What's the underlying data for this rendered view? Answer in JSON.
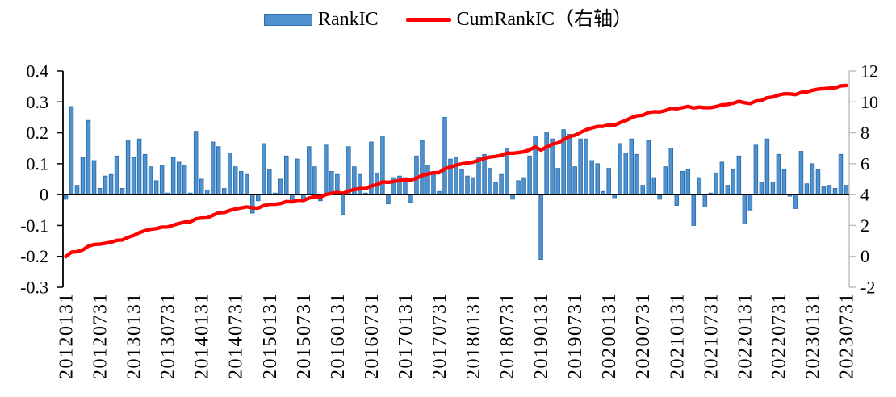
{
  "chart_data": {
    "type": "bar+line",
    "title": "",
    "legend_position": "top-center",
    "grid": false,
    "colors": {
      "bar_fill": "#4E93CF",
      "bar_stroke": "#2B6CAC",
      "line": "#FF0000",
      "left_axis": "#000000",
      "right_axis": "#BFBFBF",
      "zero_line": "#000000"
    },
    "left_axis": {
      "title": "",
      "max": 0.4,
      "min": -0.3,
      "ticks": [
        "0.4",
        "0.3",
        "0.2",
        "0.1",
        "0",
        "-0.1",
        "-0.2",
        "-0.3"
      ]
    },
    "right_axis": {
      "title": "",
      "max": 12,
      "min": -2,
      "ticks": [
        "12",
        "10",
        "8",
        "6",
        "4",
        "2",
        "0",
        "-2"
      ]
    },
    "x_axis": {
      "frequency": "monthly",
      "first_month": "20120131",
      "last_month": "20230731",
      "tick_every": 6,
      "tick_labels": [
        "20120131",
        "20120731",
        "20130131",
        "20130731",
        "20140131",
        "20140731",
        "20150131",
        "20150731",
        "20160131",
        "20160731",
        "20170131",
        "20170731",
        "20180131",
        "20180731",
        "20190131",
        "20190731",
        "20200131",
        "20200731",
        "20210131",
        "20210731",
        "20220131",
        "20220731",
        "20230131",
        "20230731"
      ]
    },
    "series": [
      {
        "name": "RankIC",
        "type": "bar",
        "axis": "left",
        "color": "#4E93CF",
        "values": [
          -0.015,
          0.285,
          0.03,
          0.12,
          0.24,
          0.11,
          0.02,
          0.06,
          0.065,
          0.125,
          0.02,
          0.175,
          0.12,
          0.18,
          0.13,
          0.09,
          0.045,
          0.095,
          0.005,
          0.12,
          0.105,
          0.095,
          0.005,
          0.205,
          0.05,
          0.015,
          0.17,
          0.155,
          0.02,
          0.135,
          0.09,
          0.075,
          0.065,
          -0.06,
          -0.02,
          0.165,
          0.08,
          0.005,
          0.05,
          0.125,
          -0.025,
          0.115,
          -0.02,
          0.155,
          0.09,
          -0.02,
          0.16,
          0.075,
          0.065,
          -0.065,
          0.155,
          0.09,
          0.065,
          0.005,
          0.17,
          0.07,
          0.19,
          -0.03,
          0.055,
          0.06,
          0.055,
          -0.025,
          0.125,
          0.175,
          0.095,
          0.075,
          0.01,
          0.25,
          0.115,
          0.12,
          0.08,
          0.06,
          0.055,
          0.12,
          0.13,
          0.085,
          0.04,
          0.065,
          0.15,
          -0.015,
          0.045,
          0.055,
          0.125,
          0.19,
          -0.21,
          0.2,
          0.18,
          0.085,
          0.21,
          0.195,
          0.09,
          0.18,
          0.18,
          0.11,
          0.1,
          0.01,
          0.085,
          -0.01,
          0.165,
          0.135,
          0.18,
          0.13,
          0.03,
          0.175,
          0.055,
          -0.015,
          0.09,
          0.15,
          -0.035,
          0.075,
          0.08,
          -0.1,
          0.055,
          -0.04,
          0.005,
          0.07,
          0.105,
          0.03,
          0.08,
          0.125,
          -0.095,
          -0.05,
          0.16,
          0.04,
          0.18,
          0.04,
          0.13,
          0.08,
          -0.005,
          -0.045,
          0.14,
          0.035,
          0.1,
          0.08,
          0.025,
          0.03,
          0.02,
          0.13,
          0.03
        ]
      },
      {
        "name": "CumRankIC（右轴）",
        "type": "line",
        "axis": "right",
        "color": "#FF0000",
        "derivation": "cumulative_sum_of_RankIC",
        "start_value": -0.015,
        "end_value": 11.07
      }
    ]
  }
}
